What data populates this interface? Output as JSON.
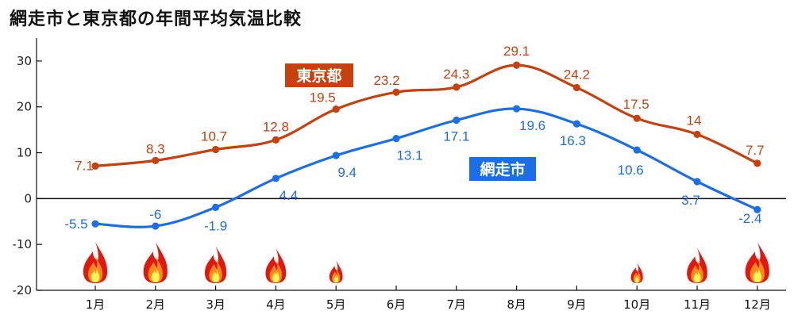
{
  "chart_data": {
    "type": "line",
    "title": "網走市と東京都の年間平均気温比較",
    "categories": [
      "1月",
      "2月",
      "3月",
      "4月",
      "5月",
      "6月",
      "7月",
      "8月",
      "9月",
      "10月",
      "11月",
      "12月"
    ],
    "ylim": [
      -20,
      35
    ],
    "yticks": [
      "30",
      "20",
      "10",
      "0",
      "-10",
      "-20"
    ],
    "grid": false,
    "series": [
      {
        "name": "東京都",
        "color": "#c8400b",
        "values": [
          7.1,
          8.3,
          10.7,
          12.8,
          19.5,
          23.2,
          24.3,
          29.1,
          24.2,
          17.5,
          14,
          7.7
        ],
        "labels": [
          "7.1",
          "8.3",
          "10.7",
          "12.8",
          "19.5",
          "23.2",
          "24.3",
          "29.1",
          "24.2",
          "17.5",
          "14",
          "7.7"
        ]
      },
      {
        "name": "網走市",
        "color": "#1a6ee8",
        "values": [
          -5.5,
          -6,
          -1.9,
          4.4,
          9.4,
          13.1,
          17.1,
          19.6,
          16.3,
          10.6,
          3.7,
          -2.4
        ],
        "labels": [
          "-5.5",
          "-6",
          "-1.9",
          "4.4",
          "9.4",
          "13.1",
          "17.1",
          "19.6",
          "16.3",
          "10.6",
          "3.7",
          "-2.4"
        ]
      }
    ],
    "flame_icons": {
      "icon": "flame-icon",
      "months": [
        "1月",
        "2月",
        "3月",
        "4月",
        "5月",
        "10月",
        "11月",
        "12月"
      ],
      "level": [
        1,
        1,
        0.9,
        0.85,
        0.55,
        0.5,
        0.85,
        1
      ]
    }
  }
}
